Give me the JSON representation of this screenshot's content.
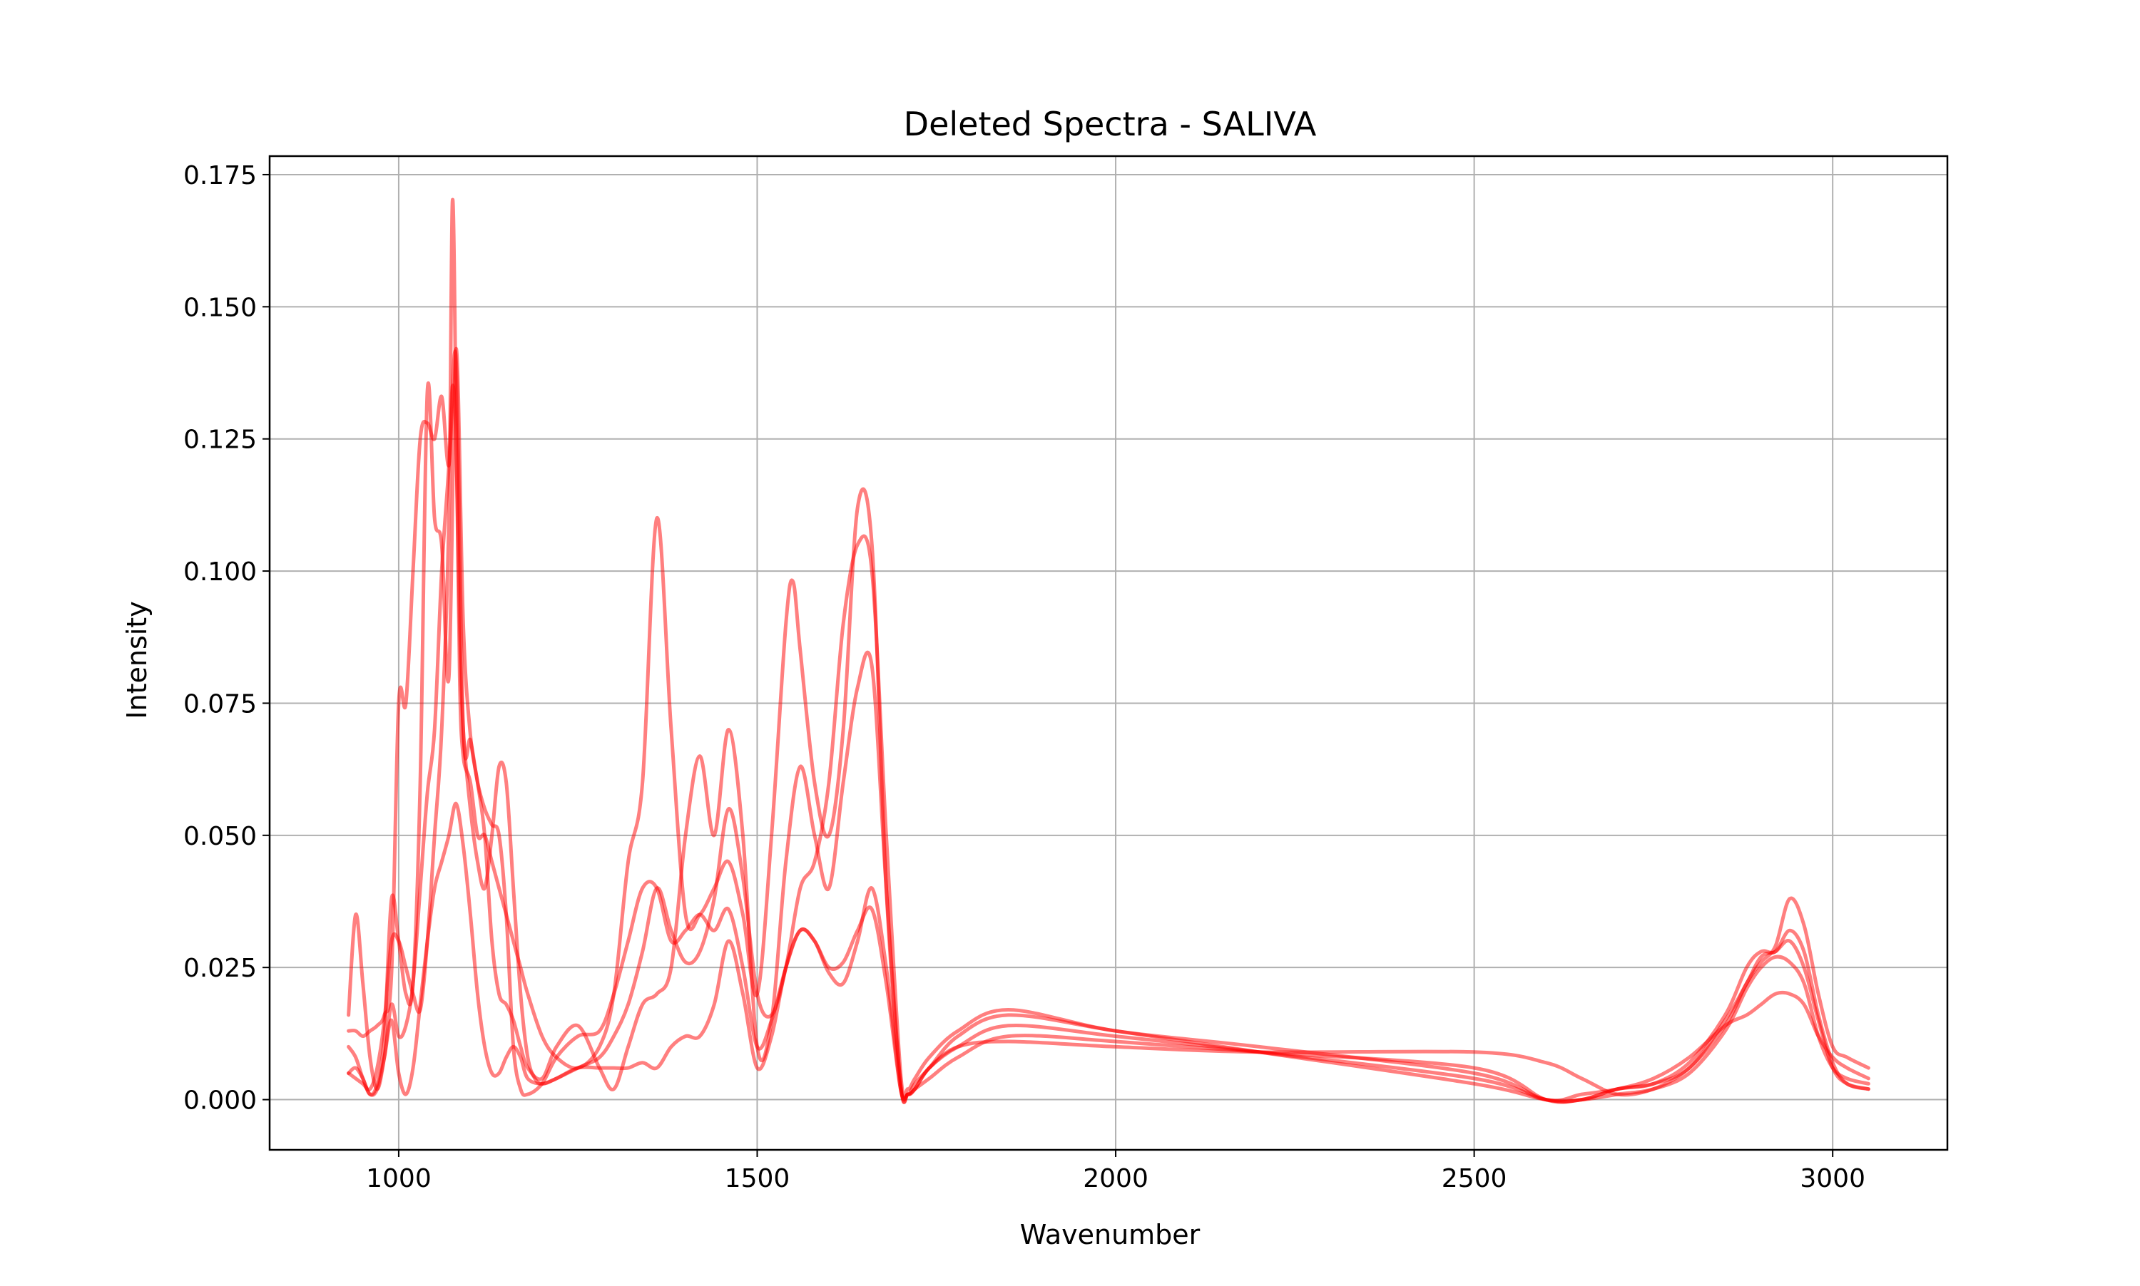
{
  "chart_data": {
    "type": "line",
    "title": "Deleted Spectra - SALIVA",
    "xlabel": "Wavenumber",
    "ylabel": "Intensity",
    "xlim": [
      820,
      3160
    ],
    "ylim": [
      -0.0095,
      0.1785
    ],
    "xticks": [
      1000,
      1500,
      2000,
      2500,
      3000
    ],
    "yticks": [
      0.0,
      0.025,
      0.05,
      0.075,
      0.1,
      0.125,
      0.15,
      0.175
    ],
    "ytick_labels": [
      "0.000",
      "0.025",
      "0.050",
      "0.075",
      "0.100",
      "0.125",
      "0.150",
      "0.175"
    ],
    "xtick_labels": [
      "1000",
      "1500",
      "2000",
      "2500",
      "3000"
    ],
    "grid": true,
    "series_color": "#ff0000",
    "series_alpha": 0.5,
    "series": [
      {
        "x": [
          930,
          940,
          950,
          960,
          970,
          980,
          990,
          1000,
          1010,
          1020,
          1030,
          1040,
          1050,
          1060,
          1070,
          1075,
          1080,
          1085,
          1090,
          1100,
          1110,
          1120,
          1130,
          1140,
          1150,
          1160,
          1170,
          1180,
          1190,
          1200,
          1220,
          1250,
          1280,
          1300,
          1320,
          1340,
          1360,
          1380,
          1400,
          1420,
          1440,
          1460,
          1480,
          1500,
          1520,
          1540,
          1560,
          1580,
          1600,
          1620,
          1640,
          1660,
          1680,
          1700,
          1710,
          1720,
          1740,
          1780,
          1850,
          2000,
          2200,
          2500,
          2600,
          2650,
          2700,
          2750,
          2800,
          2850,
          2880,
          2900,
          2920,
          2940,
          2960,
          2980,
          3000,
          3020,
          3050
        ],
        "y": [
          0.016,
          0.035,
          0.022,
          0.008,
          0.002,
          0.008,
          0.018,
          0.012,
          0.014,
          0.022,
          0.04,
          0.058,
          0.07,
          0.1,
          0.12,
          0.135,
          0.125,
          0.09,
          0.07,
          0.055,
          0.045,
          0.04,
          0.05,
          0.063,
          0.06,
          0.04,
          0.02,
          0.008,
          0.004,
          0.003,
          0.004,
          0.006,
          0.008,
          0.012,
          0.018,
          0.028,
          0.04,
          0.032,
          0.026,
          0.028,
          0.038,
          0.055,
          0.042,
          0.02,
          0.016,
          0.025,
          0.04,
          0.045,
          0.06,
          0.09,
          0.105,
          0.1,
          0.05,
          0.005,
          0.002,
          0.004,
          0.008,
          0.013,
          0.017,
          0.013,
          0.01,
          0.005,
          0.0,
          0.001,
          0.002,
          0.004,
          0.008,
          0.014,
          0.016,
          0.018,
          0.02,
          0.02,
          0.018,
          0.012,
          0.008,
          0.006,
          0.004
        ]
      },
      {
        "x": [
          930,
          940,
          950,
          960,
          970,
          980,
          990,
          1000,
          1010,
          1020,
          1030,
          1040,
          1050,
          1060,
          1070,
          1075,
          1080,
          1085,
          1090,
          1100,
          1110,
          1120,
          1130,
          1140,
          1150,
          1160,
          1170,
          1180,
          1200,
          1220,
          1250,
          1280,
          1300,
          1320,
          1340,
          1360,
          1380,
          1400,
          1420,
          1440,
          1460,
          1480,
          1500,
          1520,
          1540,
          1550,
          1560,
          1580,
          1600,
          1620,
          1640,
          1660,
          1680,
          1700,
          1710,
          1720,
          1740,
          1780,
          1850,
          2000,
          2200,
          2500,
          2600,
          2650,
          2700,
          2750,
          2800,
          2850,
          2880,
          2900,
          2920,
          2940,
          2960,
          2980,
          3000,
          3020,
          3050
        ],
        "y": [
          0.005,
          0.004,
          0.003,
          0.002,
          0.006,
          0.015,
          0.03,
          0.03,
          0.025,
          0.02,
          0.017,
          0.03,
          0.05,
          0.07,
          0.11,
          0.17,
          0.13,
          0.08,
          0.065,
          0.06,
          0.05,
          0.05,
          0.045,
          0.04,
          0.035,
          0.03,
          0.025,
          0.02,
          0.012,
          0.008,
          0.006,
          0.01,
          0.02,
          0.045,
          0.06,
          0.11,
          0.07,
          0.035,
          0.035,
          0.04,
          0.045,
          0.035,
          0.02,
          0.05,
          0.09,
          0.098,
          0.085,
          0.06,
          0.05,
          0.07,
          0.112,
          0.105,
          0.04,
          0.003,
          0.001,
          0.002,
          0.006,
          0.01,
          0.011,
          0.01,
          0.009,
          0.009,
          0.007,
          0.004,
          0.001,
          0.002,
          0.006,
          0.014,
          0.022,
          0.026,
          0.029,
          0.038,
          0.033,
          0.02,
          0.01,
          0.008,
          0.006
        ]
      },
      {
        "x": [
          930,
          940,
          950,
          960,
          970,
          980,
          990,
          1000,
          1010,
          1020,
          1030,
          1040,
          1050,
          1060,
          1070,
          1080,
          1090,
          1100,
          1110,
          1120,
          1130,
          1140,
          1150,
          1160,
          1170,
          1180,
          1200,
          1220,
          1250,
          1280,
          1300,
          1320,
          1340,
          1360,
          1380,
          1400,
          1420,
          1440,
          1460,
          1480,
          1500,
          1520,
          1540,
          1560,
          1580,
          1600,
          1620,
          1640,
          1660,
          1680,
          1700,
          1710,
          1720,
          1740,
          1780,
          1850,
          2000,
          2200,
          2500,
          2600,
          2650,
          2700,
          2750,
          2800,
          2850,
          2880,
          2900,
          2920,
          2940,
          2960,
          2980,
          3000,
          3020,
          3050
        ],
        "y": [
          0.013,
          0.013,
          0.012,
          0.013,
          0.014,
          0.016,
          0.024,
          0.075,
          0.075,
          0.1,
          0.125,
          0.128,
          0.125,
          0.133,
          0.12,
          0.14,
          0.07,
          0.068,
          0.06,
          0.055,
          0.052,
          0.05,
          0.035,
          0.01,
          0.002,
          0.001,
          0.003,
          0.008,
          0.012,
          0.013,
          0.02,
          0.03,
          0.04,
          0.04,
          0.03,
          0.032,
          0.035,
          0.032,
          0.036,
          0.025,
          0.01,
          0.015,
          0.025,
          0.032,
          0.03,
          0.024,
          0.022,
          0.03,
          0.04,
          0.025,
          0.002,
          0.001,
          0.002,
          0.006,
          0.01,
          0.014,
          0.012,
          0.009,
          0.004,
          0.0,
          0.0,
          0.002,
          0.003,
          0.006,
          0.015,
          0.022,
          0.027,
          0.028,
          0.03,
          0.025,
          0.015,
          0.006,
          0.003,
          0.002
        ]
      },
      {
        "x": [
          930,
          940,
          950,
          960,
          970,
          980,
          990,
          1000,
          1010,
          1020,
          1030,
          1040,
          1050,
          1060,
          1070,
          1080,
          1090,
          1100,
          1110,
          1120,
          1130,
          1140,
          1150,
          1160,
          1170,
          1180,
          1200,
          1220,
          1250,
          1280,
          1300,
          1320,
          1340,
          1360,
          1380,
          1400,
          1420,
          1440,
          1460,
          1480,
          1500,
          1520,
          1540,
          1560,
          1580,
          1600,
          1620,
          1640,
          1660,
          1680,
          1700,
          1710,
          1720,
          1740,
          1780,
          1850,
          2000,
          2200,
          2500,
          2600,
          2650,
          2700,
          2750,
          2800,
          2850,
          2880,
          2900,
          2920,
          2940,
          2960,
          2980,
          3000,
          3020,
          3050
        ],
        "y": [
          0.005,
          0.006,
          0.004,
          0.001,
          0.003,
          0.012,
          0.038,
          0.03,
          0.02,
          0.022,
          0.06,
          0.134,
          0.11,
          0.105,
          0.08,
          0.142,
          0.09,
          0.069,
          0.06,
          0.05,
          0.03,
          0.02,
          0.018,
          0.015,
          0.01,
          0.006,
          0.004,
          0.01,
          0.014,
          0.006,
          0.002,
          0.01,
          0.018,
          0.02,
          0.025,
          0.05,
          0.065,
          0.05,
          0.07,
          0.05,
          0.01,
          0.015,
          0.045,
          0.063,
          0.05,
          0.04,
          0.06,
          0.078,
          0.082,
          0.04,
          0.003,
          0.001,
          0.003,
          0.006,
          0.012,
          0.016,
          0.013,
          0.009,
          0.003,
          0.0,
          0.0,
          0.002,
          0.003,
          0.007,
          0.016,
          0.025,
          0.028,
          0.028,
          0.032,
          0.028,
          0.016,
          0.007,
          0.003,
          0.002
        ]
      },
      {
        "x": [
          930,
          940,
          950,
          960,
          970,
          980,
          990,
          1000,
          1010,
          1020,
          1030,
          1040,
          1050,
          1060,
          1070,
          1080,
          1090,
          1100,
          1110,
          1120,
          1130,
          1140,
          1150,
          1160,
          1170,
          1180,
          1200,
          1220,
          1250,
          1280,
          1300,
          1320,
          1340,
          1360,
          1380,
          1400,
          1420,
          1440,
          1460,
          1480,
          1500,
          1520,
          1540,
          1560,
          1580,
          1600,
          1620,
          1640,
          1660,
          1680,
          1700,
          1710,
          1720,
          1740,
          1780,
          1850,
          2000,
          2200,
          2500,
          2600,
          2650,
          2700,
          2750,
          2800,
          2850,
          2880,
          2900,
          2920,
          2940,
          2960,
          2980,
          3000,
          3020,
          3050
        ],
        "y": [
          0.01,
          0.008,
          0.004,
          0.001,
          0.002,
          0.008,
          0.015,
          0.005,
          0.001,
          0.006,
          0.018,
          0.03,
          0.04,
          0.045,
          0.05,
          0.056,
          0.048,
          0.035,
          0.02,
          0.01,
          0.005,
          0.005,
          0.008,
          0.01,
          0.008,
          0.004,
          0.003,
          0.004,
          0.006,
          0.006,
          0.006,
          0.006,
          0.007,
          0.006,
          0.01,
          0.012,
          0.012,
          0.018,
          0.03,
          0.02,
          0.006,
          0.012,
          0.025,
          0.032,
          0.03,
          0.025,
          0.026,
          0.032,
          0.036,
          0.022,
          0.002,
          0.001,
          0.002,
          0.004,
          0.008,
          0.012,
          0.011,
          0.009,
          0.006,
          0.0,
          0.0,
          0.001,
          0.002,
          0.005,
          0.013,
          0.021,
          0.025,
          0.027,
          0.026,
          0.022,
          0.012,
          0.006,
          0.004,
          0.003
        ]
      }
    ]
  }
}
